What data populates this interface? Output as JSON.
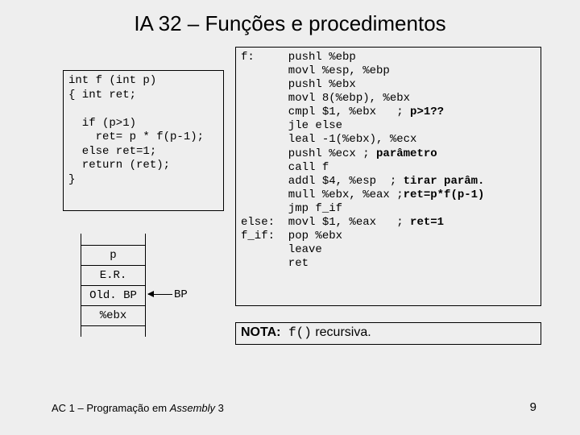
{
  "title": "IA 32 – Funções e procedimentos",
  "c_code": "int f (int p)\n{ int ret;\n\n  if (p>1)\n    ret= p * f(p-1);\n  else ret=1;\n  return (ret);\n}",
  "asm_code": "f:     pushl %ebp\n       movl %esp, %ebp\n       pushl %ebx\n       movl 8(%ebp), %ebx\n       cmpl $1, %ebx   ; <b>p>1??</b>\n       jle else\n       leal -1(%ebx), %ecx\n       pushl %ecx ; <b>parâmetro</b>\n       call f\n       addl $4, %esp  ; <b>tirar parâm.</b>\n       mull %ebx, %eax ;<b>ret=p*f(p-1)</b>\n       jmp f_if\nelse:  movl $1, %eax   ; <b>ret=1</b>\nf_if:  pop %ebx\n       leave\n       ret",
  "stack": {
    "rows": [
      "p",
      "E.R.",
      "Old. BP",
      "%ebx"
    ],
    "pointer_label": "BP"
  },
  "nota": {
    "prefix": "NOTA:",
    "mono": " f()",
    "suffix": " recursiva."
  },
  "footer": {
    "left_pre": "AC 1 – Programação em ",
    "left_italic": "Assembly",
    "left_post": " 3",
    "page": "9"
  }
}
